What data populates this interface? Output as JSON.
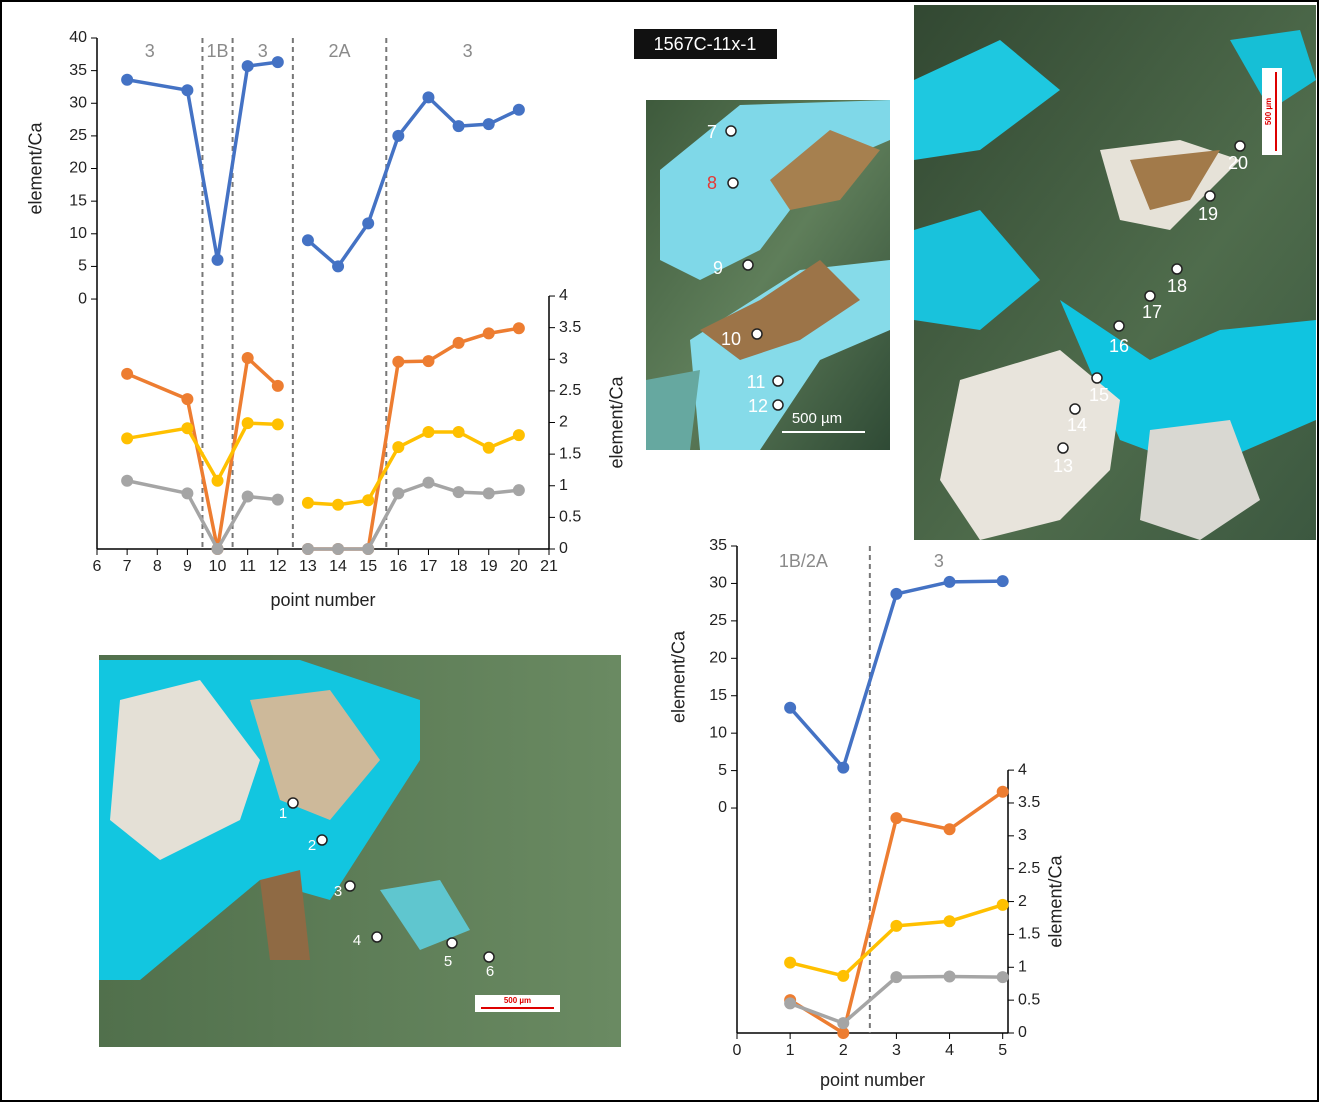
{
  "sample_label": "1567C-11x-1",
  "chart_data": [
    {
      "type": "line",
      "x": [
        7,
        9,
        10,
        11,
        12,
        null,
        13,
        14,
        15,
        16,
        17,
        18,
        19,
        20
      ],
      "xlim": [
        6,
        21
      ],
      "xticks": [
        6,
        7,
        8,
        9,
        10,
        11,
        12,
        13,
        14,
        15,
        16,
        17,
        18,
        19,
        20,
        21
      ],
      "ylim": [
        -38.3,
        40
      ],
      "yticks": [
        0,
        5,
        10,
        15,
        20,
        25,
        30,
        35,
        40
      ],
      "y2lim": [
        0,
        8.08
      ],
      "y2ticks": [
        0,
        0.5,
        1,
        1.5,
        2,
        2.5,
        3,
        3.5,
        4
      ],
      "xlabel": "point number",
      "ylabel": "element/Ca",
      "y2label": "element/Ca",
      "zones": [
        "3",
        "1B",
        "3",
        "2A",
        "3"
      ],
      "zone_dividers": [
        9.5,
        10.5,
        12.5,
        15.6
      ],
      "series": [
        {
          "color": "#4472c4",
          "axis": "y",
          "values": [
            33.6,
            32,
            6,
            35.7,
            36.3,
            null,
            9,
            5,
            11.6,
            25,
            30.9,
            26.5,
            26.8,
            29
          ]
        },
        {
          "color": "#ed7d31",
          "axis": "y2",
          "values": [
            2.77,
            2.37,
            0,
            3.02,
            2.58,
            null,
            0,
            0,
            0,
            2.96,
            2.97,
            3.26,
            3.41,
            3.49
          ]
        },
        {
          "color": "#ffc000",
          "axis": "y2",
          "values": [
            1.75,
            1.91,
            1.08,
            1.99,
            1.97,
            null,
            0.73,
            0.7,
            0.77,
            1.61,
            1.85,
            1.85,
            1.6,
            1.8
          ]
        },
        {
          "color": "#a5a5a5",
          "axis": "y2",
          "values": [
            1.08,
            0.88,
            0,
            0.83,
            0.78,
            null,
            0,
            0,
            0,
            0.88,
            1.05,
            0.9,
            0.88,
            0.93
          ]
        }
      ]
    },
    {
      "type": "line",
      "x": [
        1,
        2,
        3,
        4,
        5
      ],
      "xlim": [
        0,
        5.1
      ],
      "xticks": [
        0,
        1,
        2,
        3,
        4,
        5
      ],
      "ylim": [
        -30.05,
        35
      ],
      "yticks": [
        0,
        5,
        10,
        15,
        20,
        25,
        30,
        35
      ],
      "y2lim": [
        0,
        7.41
      ],
      "y2ticks": [
        0,
        0.5,
        1,
        1.5,
        2,
        2.5,
        3,
        3.5,
        4
      ],
      "xlabel": "point number",
      "ylabel": "element/Ca",
      "y2label": "element/Ca",
      "zones": [
        "1B/2A",
        "3"
      ],
      "zone_dividers": [
        2.5
      ],
      "series": [
        {
          "color": "#4472c4",
          "axis": "y",
          "values": [
            13.4,
            5.4,
            28.6,
            30.2,
            30.3
          ]
        },
        {
          "color": "#ed7d31",
          "axis": "y2",
          "values": [
            0.5,
            0,
            3.27,
            3.1,
            3.67
          ]
        },
        {
          "color": "#ffc000",
          "axis": "y2",
          "values": [
            1.07,
            0.87,
            1.63,
            1.7,
            1.95
          ]
        },
        {
          "color": "#a5a5a5",
          "axis": "y2",
          "values": [
            0.45,
            0.15,
            0.85,
            0.86,
            0.85
          ]
        }
      ]
    }
  ],
  "micrographs": [
    {
      "points": [
        "7",
        "8",
        "9",
        "10",
        "11",
        "12"
      ],
      "scale_bar": "500 µm"
    },
    {
      "points": [
        "13",
        "14",
        "15",
        "16",
        "17",
        "18",
        "19",
        "20"
      ],
      "scale_bar": "500 µm"
    },
    {
      "points": [
        "1",
        "2",
        "3",
        "4",
        "5",
        "6"
      ],
      "scale_bar": "500 µm"
    }
  ]
}
